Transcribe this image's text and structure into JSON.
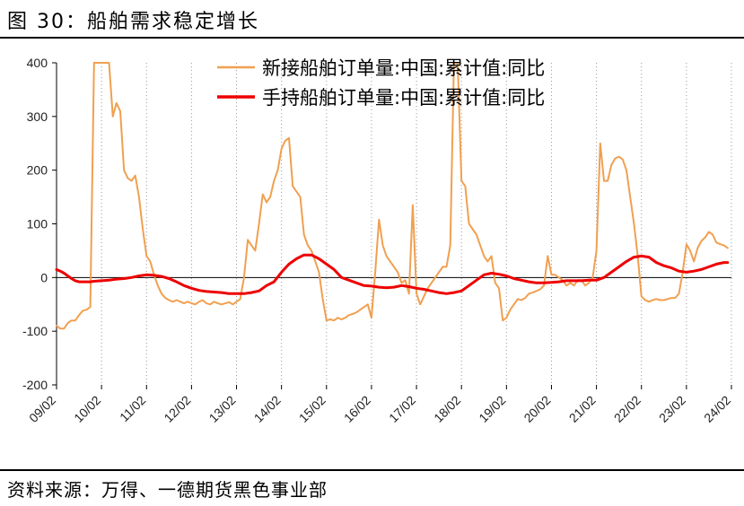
{
  "figure": {
    "title": "图 30：船舶需求稳定增长",
    "source": "资料来源：万得、一德期货黑色事业部"
  },
  "colors": {
    "new_orders": "#F0A050",
    "orders_on_hand": "#EE0000",
    "axis": "#000000",
    "grid": "#999999"
  },
  "chart_data": {
    "type": "line",
    "title": "",
    "xlabel": "",
    "ylabel": "",
    "ylim": [
      -200,
      400
    ],
    "yticks": [
      -200,
      -100,
      0,
      100,
      200,
      300,
      400
    ],
    "x_start": "2009-02",
    "x_end": "2024-02",
    "xticks": [
      "09/02",
      "10/02",
      "11/02",
      "12/02",
      "13/02",
      "14/02",
      "15/02",
      "16/02",
      "17/02",
      "18/02",
      "19/02",
      "20/02",
      "21/02",
      "22/02",
      "23/02",
      "24/02"
    ],
    "grid": "vertical dotted at year ticks",
    "legend_position": "top-center",
    "series": [
      {
        "name": "新接船舶订单量:中国:累计值:同比",
        "color": "#F0A050",
        "points": [
          [
            "2009-02",
            -90
          ],
          [
            "2009-03",
            -95
          ],
          [
            "2009-04",
            -95
          ],
          [
            "2009-05",
            -85
          ],
          [
            "2009-06",
            -80
          ],
          [
            "2009-07",
            -80
          ],
          [
            "2009-08",
            -70
          ],
          [
            "2009-09",
            -62
          ],
          [
            "2009-10",
            -60
          ],
          [
            "2009-11",
            -55
          ],
          [
            "2009-12",
            400
          ],
          [
            "2010-01",
            400
          ],
          [
            "2010-04",
            400
          ],
          [
            "2010-05",
            300
          ],
          [
            "2010-06",
            325
          ],
          [
            "2010-07",
            310
          ],
          [
            "2010-08",
            200
          ],
          [
            "2010-09",
            185
          ],
          [
            "2010-10",
            180
          ],
          [
            "2010-11",
            190
          ],
          [
            "2010-12",
            150
          ],
          [
            "2011-01",
            90
          ],
          [
            "2011-02",
            40
          ],
          [
            "2011-03",
            30
          ],
          [
            "2011-04",
            5
          ],
          [
            "2011-05",
            -15
          ],
          [
            "2011-06",
            -30
          ],
          [
            "2011-07",
            -38
          ],
          [
            "2011-08",
            -42
          ],
          [
            "2011-09",
            -45
          ],
          [
            "2011-10",
            -42
          ],
          [
            "2011-11",
            -45
          ],
          [
            "2011-12",
            -48
          ],
          [
            "2012-01",
            -45
          ],
          [
            "2012-02",
            -48
          ],
          [
            "2012-03",
            -50
          ],
          [
            "2012-04",
            -45
          ],
          [
            "2012-05",
            -42
          ],
          [
            "2012-06",
            -48
          ],
          [
            "2012-07",
            -50
          ],
          [
            "2012-08",
            -45
          ],
          [
            "2012-09",
            -48
          ],
          [
            "2012-10",
            -50
          ],
          [
            "2012-11",
            -48
          ],
          [
            "2012-12",
            -46
          ],
          [
            "2013-01",
            -50
          ],
          [
            "2013-02",
            -45
          ],
          [
            "2013-03",
            -40
          ],
          [
            "2013-04",
            0
          ],
          [
            "2013-05",
            70
          ],
          [
            "2013-06",
            60
          ],
          [
            "2013-07",
            50
          ],
          [
            "2013-08",
            100
          ],
          [
            "2013-09",
            155
          ],
          [
            "2013-10",
            140
          ],
          [
            "2013-11",
            150
          ],
          [
            "2013-12",
            180
          ],
          [
            "2014-01",
            200
          ],
          [
            "2014-02",
            240
          ],
          [
            "2014-03",
            255
          ],
          [
            "2014-04",
            260
          ],
          [
            "2014-05",
            170
          ],
          [
            "2014-06",
            160
          ],
          [
            "2014-07",
            150
          ],
          [
            "2014-08",
            80
          ],
          [
            "2014-09",
            60
          ],
          [
            "2014-10",
            50
          ],
          [
            "2014-11",
            30
          ],
          [
            "2014-12",
            10
          ],
          [
            "2015-01",
            -40
          ],
          [
            "2015-02",
            -80
          ],
          [
            "2015-03",
            -78
          ],
          [
            "2015-04",
            -80
          ],
          [
            "2015-05",
            -75
          ],
          [
            "2015-06",
            -78
          ],
          [
            "2015-07",
            -75
          ],
          [
            "2015-08",
            -70
          ],
          [
            "2015-09",
            -68
          ],
          [
            "2015-10",
            -65
          ],
          [
            "2015-11",
            -60
          ],
          [
            "2015-12",
            -55
          ],
          [
            "2016-01",
            -50
          ],
          [
            "2016-02",
            -75
          ],
          [
            "2016-03",
            10
          ],
          [
            "2016-04",
            108
          ],
          [
            "2016-05",
            60
          ],
          [
            "2016-06",
            40
          ],
          [
            "2016-07",
            30
          ],
          [
            "2016-08",
            20
          ],
          [
            "2016-09",
            10
          ],
          [
            "2016-10",
            -10
          ],
          [
            "2016-11",
            -5
          ],
          [
            "2016-12",
            -30
          ],
          [
            "2017-01",
            135
          ],
          [
            "2017-02",
            -30
          ],
          [
            "2017-03",
            -50
          ],
          [
            "2017-04",
            -35
          ],
          [
            "2017-05",
            -20
          ],
          [
            "2017-06",
            -10
          ],
          [
            "2017-07",
            0
          ],
          [
            "2017-08",
            10
          ],
          [
            "2017-09",
            20
          ],
          [
            "2017-10",
            20
          ],
          [
            "2017-11",
            60
          ],
          [
            "2017-12",
            400
          ],
          [
            "2018-01",
            400
          ],
          [
            "2018-02",
            180
          ],
          [
            "2018-03",
            170
          ],
          [
            "2018-04",
            100
          ],
          [
            "2018-05",
            90
          ],
          [
            "2018-06",
            80
          ],
          [
            "2018-07",
            60
          ],
          [
            "2018-08",
            40
          ],
          [
            "2018-09",
            30
          ],
          [
            "2018-10",
            40
          ],
          [
            "2018-11",
            -10
          ],
          [
            "2018-12",
            -20
          ],
          [
            "2019-01",
            -80
          ],
          [
            "2019-02",
            -75
          ],
          [
            "2019-03",
            -60
          ],
          [
            "2019-04",
            -50
          ],
          [
            "2019-05",
            -40
          ],
          [
            "2019-06",
            -42
          ],
          [
            "2019-07",
            -38
          ],
          [
            "2019-08",
            -30
          ],
          [
            "2019-09",
            -28
          ],
          [
            "2019-10",
            -25
          ],
          [
            "2019-11",
            -22
          ],
          [
            "2019-12",
            -15
          ],
          [
            "2020-01",
            40
          ],
          [
            "2020-02",
            5
          ],
          [
            "2020-03",
            5
          ],
          [
            "2020-04",
            0
          ],
          [
            "2020-05",
            -5
          ],
          [
            "2020-06",
            -15
          ],
          [
            "2020-07",
            -10
          ],
          [
            "2020-08",
            -15
          ],
          [
            "2020-09",
            -5
          ],
          [
            "2020-10",
            -5
          ],
          [
            "2020-11",
            -15
          ],
          [
            "2020-12",
            -10
          ],
          [
            "2021-01",
            0
          ],
          [
            "2021-02",
            50
          ],
          [
            "2021-03",
            250
          ],
          [
            "2021-04",
            180
          ],
          [
            "2021-05",
            180
          ],
          [
            "2021-06",
            210
          ],
          [
            "2021-07",
            222
          ],
          [
            "2021-08",
            225
          ],
          [
            "2021-09",
            220
          ],
          [
            "2021-10",
            200
          ],
          [
            "2021-11",
            150
          ],
          [
            "2021-12",
            100
          ],
          [
            "2022-01",
            40
          ],
          [
            "2022-02",
            -35
          ],
          [
            "2022-03",
            -42
          ],
          [
            "2022-04",
            -45
          ],
          [
            "2022-05",
            -42
          ],
          [
            "2022-06",
            -40
          ],
          [
            "2022-07",
            -42
          ],
          [
            "2022-08",
            -42
          ],
          [
            "2022-09",
            -40
          ],
          [
            "2022-10",
            -38
          ],
          [
            "2022-11",
            -38
          ],
          [
            "2022-12",
            -30
          ],
          [
            "2023-01",
            10
          ],
          [
            "2023-02",
            62
          ],
          [
            "2023-03",
            50
          ],
          [
            "2023-04",
            30
          ],
          [
            "2023-05",
            55
          ],
          [
            "2023-06",
            68
          ],
          [
            "2023-07",
            75
          ],
          [
            "2023-08",
            85
          ],
          [
            "2023-09",
            80
          ],
          [
            "2023-10",
            65
          ],
          [
            "2023-11",
            62
          ],
          [
            "2023-12",
            60
          ],
          [
            "2024-01",
            55
          ]
        ]
      },
      {
        "name": "手持船舶订单量:中国:累计值:同比",
        "color": "#EE0000",
        "points": [
          [
            "2009-02",
            15
          ],
          [
            "2009-03",
            12
          ],
          [
            "2009-04",
            8
          ],
          [
            "2009-05",
            3
          ],
          [
            "2009-06",
            -2
          ],
          [
            "2009-07",
            -6
          ],
          [
            "2009-08",
            -8
          ],
          [
            "2009-09",
            -8
          ],
          [
            "2009-10",
            -8
          ],
          [
            "2009-11",
            -8
          ],
          [
            "2009-12",
            -7
          ],
          [
            "2010-02",
            -6
          ],
          [
            "2010-04",
            -5
          ],
          [
            "2010-06",
            -3
          ],
          [
            "2010-08",
            -2
          ],
          [
            "2010-10",
            0
          ],
          [
            "2010-12",
            3
          ],
          [
            "2011-02",
            5
          ],
          [
            "2011-04",
            4
          ],
          [
            "2011-06",
            2
          ],
          [
            "2011-08",
            -2
          ],
          [
            "2011-10",
            -8
          ],
          [
            "2011-12",
            -15
          ],
          [
            "2012-02",
            -20
          ],
          [
            "2012-04",
            -24
          ],
          [
            "2012-06",
            -26
          ],
          [
            "2012-08",
            -27
          ],
          [
            "2012-10",
            -28
          ],
          [
            "2012-12",
            -30
          ],
          [
            "2013-02",
            -30
          ],
          [
            "2013-04",
            -30
          ],
          [
            "2013-06",
            -28
          ],
          [
            "2013-08",
            -25
          ],
          [
            "2013-10",
            -15
          ],
          [
            "2013-12",
            -8
          ],
          [
            "2014-02",
            10
          ],
          [
            "2014-04",
            25
          ],
          [
            "2014-06",
            35
          ],
          [
            "2014-08",
            42
          ],
          [
            "2014-10",
            42
          ],
          [
            "2014-12",
            35
          ],
          [
            "2015-02",
            25
          ],
          [
            "2015-04",
            15
          ],
          [
            "2015-06",
            0
          ],
          [
            "2015-08",
            -5
          ],
          [
            "2015-10",
            -10
          ],
          [
            "2015-12",
            -15
          ],
          [
            "2016-02",
            -16
          ],
          [
            "2016-04",
            -18
          ],
          [
            "2016-06",
            -19
          ],
          [
            "2016-08",
            -18
          ],
          [
            "2016-10",
            -15
          ],
          [
            "2016-12",
            -17
          ],
          [
            "2017-02",
            -20
          ],
          [
            "2017-04",
            -22
          ],
          [
            "2017-06",
            -25
          ],
          [
            "2017-08",
            -28
          ],
          [
            "2017-10",
            -30
          ],
          [
            "2017-12",
            -28
          ],
          [
            "2018-02",
            -25
          ],
          [
            "2018-04",
            -15
          ],
          [
            "2018-06",
            -5
          ],
          [
            "2018-08",
            5
          ],
          [
            "2018-10",
            8
          ],
          [
            "2018-12",
            6
          ],
          [
            "2019-02",
            3
          ],
          [
            "2019-04",
            -2
          ],
          [
            "2019-06",
            -5
          ],
          [
            "2019-08",
            -8
          ],
          [
            "2019-10",
            -10
          ],
          [
            "2019-12",
            -10
          ],
          [
            "2020-02",
            -9
          ],
          [
            "2020-04",
            -8
          ],
          [
            "2020-06",
            -6
          ],
          [
            "2020-08",
            -6
          ],
          [
            "2020-10",
            -6
          ],
          [
            "2020-12",
            -5
          ],
          [
            "2021-02",
            -5
          ],
          [
            "2021-04",
            0
          ],
          [
            "2021-06",
            10
          ],
          [
            "2021-08",
            20
          ],
          [
            "2021-10",
            30
          ],
          [
            "2021-12",
            38
          ],
          [
            "2022-02",
            40
          ],
          [
            "2022-04",
            38
          ],
          [
            "2022-06",
            28
          ],
          [
            "2022-08",
            22
          ],
          [
            "2022-10",
            18
          ],
          [
            "2022-12",
            12
          ],
          [
            "2023-02",
            10
          ],
          [
            "2023-04",
            12
          ],
          [
            "2023-06",
            15
          ],
          [
            "2023-08",
            20
          ],
          [
            "2023-10",
            25
          ],
          [
            "2023-12",
            28
          ],
          [
            "2024-01",
            28
          ]
        ]
      }
    ]
  }
}
